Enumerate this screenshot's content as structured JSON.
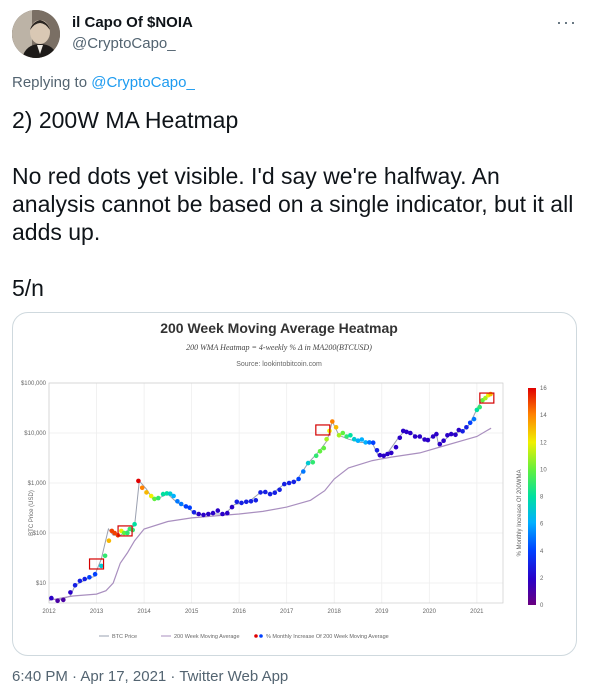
{
  "tweet": {
    "author_name": "il Capo Of $NOIA",
    "author_handle": "@CryptoCapo_",
    "more_label": "···",
    "reply_prefix": "Replying to ",
    "reply_handle": "@CryptoCapo_",
    "text": "2) 200W MA Heatmap\n\nNo red dots yet visible. I'd say we're halfway. An analysis cannot be based on a single indicator, but it all adds up.\n\n5/n",
    "timestamp": "6:40 PM · Apr 17, 2021",
    "source_sep": " · ",
    "source": "Twitter Web App"
  },
  "chart_data": {
    "type": "scatter",
    "title": "200 Week Moving Average Heatmap",
    "subtitle": "200 WMA Heatmap = 4-weekly % Δ in MA200(BTCUSD)",
    "source": "Source: lookintobitcoin.com",
    "ylabel": "BTC Price (USD)",
    "colorbar_label": "% Monthly Increase Of 200WMA",
    "y_scale": "log",
    "x_ticks": [
      "2012",
      "2013",
      "2014",
      "2015",
      "2016",
      "2017",
      "2018",
      "2019",
      "2020",
      "2021"
    ],
    "y_ticks": [
      "$10",
      "$100",
      "$1,000",
      "$10,000",
      "$100,000"
    ],
    "colorbar_ticks": [
      "0",
      "2",
      "4",
      "6",
      "8",
      "10",
      "12",
      "14",
      "16"
    ],
    "legend": [
      "BTC Price",
      "200 Week Moving Average",
      "% Monthly Increase Of 200 Week Moving Average"
    ],
    "grid": true,
    "colors": {
      "price_line": "#9aa0b0",
      "ma_line": "#a98fbf"
    },
    "series": [
      {
        "name": "BTC Price",
        "points": [
          [
            2012.0,
            5
          ],
          [
            2012.2,
            4.5
          ],
          [
            2012.45,
            5.5
          ],
          [
            2012.55,
            9
          ],
          [
            2012.8,
            12
          ],
          [
            2012.95,
            13.5
          ],
          [
            2013.1,
            30
          ],
          [
            2013.25,
            120
          ],
          [
            2013.35,
            90
          ],
          [
            2013.5,
            90
          ],
          [
            2013.7,
            120
          ],
          [
            2013.8,
            140
          ],
          [
            2013.9,
            1100
          ],
          [
            2014.05,
            750
          ],
          [
            2014.2,
            450
          ],
          [
            2014.5,
            600
          ],
          [
            2014.7,
            400
          ],
          [
            2014.9,
            330
          ],
          [
            2015.1,
            230
          ],
          [
            2015.4,
            240
          ],
          [
            2015.7,
            240
          ],
          [
            2015.9,
            370
          ],
          [
            2016.2,
            420
          ],
          [
            2016.45,
            650
          ],
          [
            2016.7,
            620
          ],
          [
            2016.95,
            950
          ],
          [
            2017.2,
            1100
          ],
          [
            2017.45,
            2500
          ],
          [
            2017.7,
            4500
          ],
          [
            2017.85,
            7000
          ],
          [
            2017.96,
            17000
          ],
          [
            2018.1,
            9000
          ],
          [
            2018.3,
            7500
          ],
          [
            2018.55,
            6500
          ],
          [
            2018.8,
            6300
          ],
          [
            2018.93,
            3500
          ],
          [
            2019.1,
            3700
          ],
          [
            2019.35,
            8000
          ],
          [
            2019.5,
            11500
          ],
          [
            2019.7,
            9000
          ],
          [
            2019.95,
            7200
          ],
          [
            2020.15,
            9500
          ],
          [
            2020.2,
            5500
          ],
          [
            2020.45,
            9500
          ],
          [
            2020.7,
            11000
          ],
          [
            2020.85,
            15000
          ],
          [
            2021.0,
            30000
          ],
          [
            2021.1,
            45000
          ],
          [
            2021.2,
            55000
          ],
          [
            2021.29,
            60000
          ]
        ]
      },
      {
        "name": "200 Week Moving Average",
        "points": [
          [
            2012.0,
            4.5
          ],
          [
            2012.5,
            5.5
          ],
          [
            2013.0,
            6
          ],
          [
            2013.2,
            7
          ],
          [
            2013.35,
            10
          ],
          [
            2013.5,
            25
          ],
          [
            2013.65,
            40
          ],
          [
            2013.8,
            70
          ],
          [
            2014.0,
            120
          ],
          [
            2014.5,
            170
          ],
          [
            2015.0,
            200
          ],
          [
            2015.5,
            220
          ],
          [
            2016.0,
            240
          ],
          [
            2016.5,
            270
          ],
          [
            2017.0,
            330
          ],
          [
            2017.5,
            450
          ],
          [
            2017.8,
            700
          ],
          [
            2018.0,
            1200
          ],
          [
            2018.3,
            2000
          ],
          [
            2018.8,
            2800
          ],
          [
            2019.2,
            3300
          ],
          [
            2019.8,
            4000
          ],
          [
            2020.3,
            5500
          ],
          [
            2020.8,
            7500
          ],
          [
            2021.0,
            8500
          ],
          [
            2021.2,
            11000
          ],
          [
            2021.3,
            12500
          ]
        ]
      },
      {
        "name": "% Monthly Increase Of 200 Week Moving Average",
        "points": [
          [
            2012.05,
            5,
            2
          ],
          [
            2012.18,
            4.4,
            1
          ],
          [
            2012.3,
            4.6,
            1
          ],
          [
            2012.45,
            6.5,
            2
          ],
          [
            2012.55,
            9,
            3
          ],
          [
            2012.65,
            11,
            3
          ],
          [
            2012.75,
            12,
            3
          ],
          [
            2012.85,
            13,
            4
          ],
          [
            2012.97,
            15,
            4
          ],
          [
            2013.1,
            22,
            7
          ],
          [
            2013.18,
            35,
            9
          ],
          [
            2013.26,
            70,
            13
          ],
          [
            2013.32,
            110,
            15
          ],
          [
            2013.38,
            100,
            15
          ],
          [
            2013.45,
            90,
            15
          ],
          [
            2013.52,
            110,
            12
          ],
          [
            2013.58,
            100,
            10
          ],
          [
            2013.65,
            100,
            9
          ],
          [
            2013.7,
            120,
            9
          ],
          [
            2013.76,
            115,
            9
          ],
          [
            2013.8,
            150,
            8
          ],
          [
            2013.88,
            1100,
            16
          ],
          [
            2013.96,
            800,
            14
          ],
          [
            2014.05,
            650,
            13
          ],
          [
            2014.15,
            550,
            12
          ],
          [
            2014.22,
            480,
            10
          ],
          [
            2014.3,
            500,
            9
          ],
          [
            2014.4,
            600,
            8
          ],
          [
            2014.48,
            620,
            8
          ],
          [
            2014.55,
            610,
            7
          ],
          [
            2014.62,
            550,
            6
          ],
          [
            2014.7,
            430,
            5
          ],
          [
            2014.78,
            380,
            5
          ],
          [
            2014.88,
            340,
            4
          ],
          [
            2014.96,
            320,
            4
          ],
          [
            2015.05,
            260,
            3
          ],
          [
            2015.15,
            240,
            2
          ],
          [
            2015.25,
            230,
            2
          ],
          [
            2015.35,
            240,
            2
          ],
          [
            2015.45,
            250,
            2
          ],
          [
            2015.55,
            280,
            2
          ],
          [
            2015.65,
            240,
            2
          ],
          [
            2015.75,
            250,
            2
          ],
          [
            2015.85,
            330,
            2
          ],
          [
            2015.95,
            420,
            3
          ],
          [
            2016.05,
            400,
            3
          ],
          [
            2016.15,
            420,
            3
          ],
          [
            2016.25,
            430,
            3
          ],
          [
            2016.35,
            450,
            3
          ],
          [
            2016.45,
            650,
            3
          ],
          [
            2016.55,
            660,
            3
          ],
          [
            2016.65,
            600,
            3
          ],
          [
            2016.75,
            640,
            3
          ],
          [
            2016.85,
            730,
            3
          ],
          [
            2016.95,
            950,
            3
          ],
          [
            2017.05,
            1000,
            3
          ],
          [
            2017.15,
            1050,
            3
          ],
          [
            2017.25,
            1200,
            4
          ],
          [
            2017.35,
            1700,
            5
          ],
          [
            2017.45,
            2500,
            7
          ],
          [
            2017.55,
            2600,
            9
          ],
          [
            2017.62,
            3500,
            9
          ],
          [
            2017.7,
            4300,
            10
          ],
          [
            2017.78,
            5000,
            10
          ],
          [
            2017.84,
            7500,
            11
          ],
          [
            2017.9,
            11000,
            12
          ],
          [
            2017.96,
            17000,
            14
          ],
          [
            2018.04,
            13000,
            13
          ],
          [
            2018.1,
            9000,
            11
          ],
          [
            2018.18,
            10000,
            10
          ],
          [
            2018.26,
            8500,
            9
          ],
          [
            2018.34,
            9000,
            8
          ],
          [
            2018.42,
            7500,
            7
          ],
          [
            2018.5,
            7000,
            6
          ],
          [
            2018.58,
            7400,
            6
          ],
          [
            2018.66,
            6500,
            6
          ],
          [
            2018.74,
            6500,
            5
          ],
          [
            2018.82,
            6400,
            4
          ],
          [
            2018.9,
            4500,
            3
          ],
          [
            2018.96,
            3600,
            2
          ],
          [
            2019.04,
            3500,
            2
          ],
          [
            2019.12,
            3800,
            2
          ],
          [
            2019.2,
            4000,
            2
          ],
          [
            2019.3,
            5200,
            2
          ],
          [
            2019.38,
            8000,
            2
          ],
          [
            2019.45,
            11000,
            2
          ],
          [
            2019.52,
            10500,
            2
          ],
          [
            2019.6,
            10000,
            2
          ],
          [
            2019.7,
            8500,
            2
          ],
          [
            2019.8,
            8500,
            2
          ],
          [
            2019.9,
            7400,
            2
          ],
          [
            2019.97,
            7200,
            2
          ],
          [
            2020.08,
            8500,
            2
          ],
          [
            2020.15,
            9500,
            2
          ],
          [
            2020.22,
            6000,
            2
          ],
          [
            2020.3,
            7000,
            2
          ],
          [
            2020.38,
            9000,
            2
          ],
          [
            2020.46,
            9500,
            2
          ],
          [
            2020.55,
            9200,
            2
          ],
          [
            2020.62,
            11500,
            2
          ],
          [
            2020.7,
            10800,
            3
          ],
          [
            2020.78,
            13000,
            3
          ],
          [
            2020.86,
            16000,
            4
          ],
          [
            2020.94,
            19000,
            5
          ],
          [
            2021.0,
            29000,
            8
          ],
          [
            2021.06,
            33000,
            9
          ],
          [
            2021.12,
            45000,
            10
          ],
          [
            2021.18,
            50000,
            11
          ],
          [
            2021.24,
            57000,
            12
          ],
          [
            2021.29,
            60000,
            13
          ]
        ]
      }
    ],
    "highlights": [
      [
        2013.0,
        24
      ],
      [
        2013.6,
        110
      ],
      [
        2017.76,
        11500
      ],
      [
        2021.21,
        50000
      ]
    ]
  }
}
